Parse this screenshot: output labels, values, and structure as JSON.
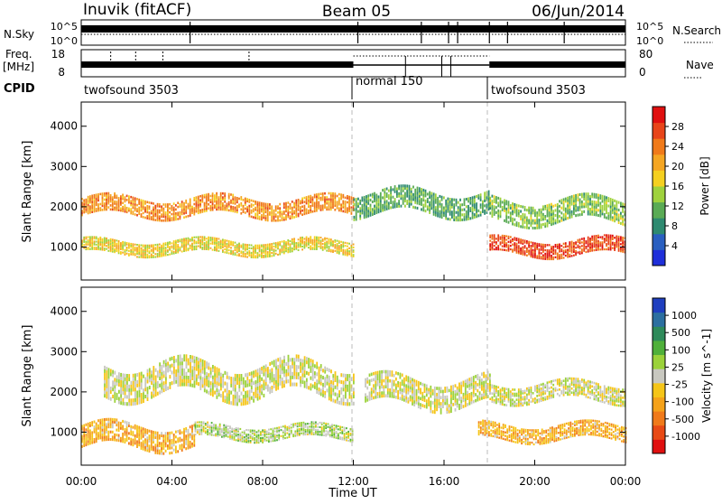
{
  "header": {
    "station": "Inuvik (fitACF)",
    "beam": "Beam 05",
    "date": "06/Jun/2014"
  },
  "top_panels": {
    "nsky_label": "N.Sky",
    "nsearch_label": "N.Search",
    "nsky_ticks": [
      "10^5",
      "10^0"
    ],
    "nsearch_ticks": [
      "10^5",
      "10^0"
    ],
    "freq_label": "Freq.",
    "freq_unit": "[MHz]",
    "freq_ticks": [
      "18",
      "8"
    ],
    "nave_label": "Nave",
    "nave_ticks": [
      "80",
      "0"
    ],
    "cpid_label": "CPID",
    "cpid_segments": [
      {
        "name": "twofsound 3503",
        "start_h": 0,
        "end_h": 12
      },
      {
        "name": "normal 150",
        "start_h": 12,
        "end_h": 18
      },
      {
        "name": "twofsound 3503",
        "start_h": 18,
        "end_h": 24
      }
    ]
  },
  "axes": {
    "ylabel": "Slant Range [km]",
    "xlabel": "Time UT",
    "x_ticks": [
      "00:00",
      "04:00",
      "08:00",
      "12:00",
      "16:00",
      "20:00",
      "00:00"
    ],
    "y_ticks": [
      "1000",
      "2000",
      "3000",
      "4000"
    ]
  },
  "power_scale": {
    "label": "Power [dB]",
    "ticks": [
      "4",
      "8",
      "12",
      "16",
      "20",
      "24",
      "28"
    ],
    "colors": [
      "#1f2fd9",
      "#2a5fc0",
      "#2e8a70",
      "#5aab55",
      "#9fd23d",
      "#f5d020",
      "#f5a623",
      "#f07a1a",
      "#e8451a",
      "#e01010"
    ]
  },
  "velocity_scale": {
    "label": "Velocity [m s^-1]",
    "ticks": [
      "1000",
      "500",
      "100",
      "25",
      "-25",
      "-100",
      "-500",
      "-1000"
    ],
    "colors": [
      "#1f3fbf",
      "#2c6fa0",
      "#2e8a5a",
      "#4fb03a",
      "#9bd23a",
      "#c8c8c0",
      "#f5c518",
      "#f5a21a",
      "#f07a1a",
      "#e84a15",
      "#e01010"
    ]
  },
  "chart_data": {
    "type": "heatmap",
    "title": "Inuvik (fitACF) Beam 05 06/Jun/2014",
    "xlabel": "Time UT",
    "ylabel": "Slant Range [km]",
    "x_range_hours": [
      0,
      24
    ],
    "y_range_km": [
      180,
      4600
    ],
    "grid": false,
    "panels": [
      {
        "name": "Power",
        "units": "dB",
        "color_range": [
          3,
          30
        ],
        "bands": [
          {
            "start_h": 0.0,
            "end_h": 12.0,
            "center_km": 2000,
            "width_km": 400,
            "value": 22
          },
          {
            "start_h": 0.0,
            "end_h": 12.0,
            "center_km": 1000,
            "width_km": 300,
            "value": 18
          },
          {
            "start_h": 12.0,
            "end_h": 18.0,
            "center_km": 2100,
            "width_km": 500,
            "value": 12
          },
          {
            "start_h": 18.0,
            "end_h": 24.0,
            "center_km": 1000,
            "width_km": 350,
            "value": 26
          },
          {
            "start_h": 18.0,
            "end_h": 24.0,
            "center_km": 1900,
            "width_km": 500,
            "value": 14
          }
        ]
      },
      {
        "name": "Velocity",
        "units": "m s^-1",
        "color_range": [
          -1000,
          1000
        ],
        "bands": [
          {
            "start_h": 0.0,
            "end_h": 5.0,
            "center_km": 900,
            "width_km": 500,
            "value": -300
          },
          {
            "start_h": 5.0,
            "end_h": 12.0,
            "center_km": 1000,
            "width_km": 300,
            "value": 100
          },
          {
            "start_h": 1.0,
            "end_h": 12.0,
            "center_km": 2300,
            "width_km": 700,
            "value": 0
          },
          {
            "start_h": 12.5,
            "end_h": 18.0,
            "center_km": 2000,
            "width_km": 600,
            "value": 0
          },
          {
            "start_h": 17.5,
            "end_h": 24.0,
            "center_km": 1000,
            "width_km": 350,
            "value": -300
          },
          {
            "start_h": 18.0,
            "end_h": 24.0,
            "center_km": 2000,
            "width_km": 400,
            "value": 0
          }
        ]
      }
    ]
  }
}
